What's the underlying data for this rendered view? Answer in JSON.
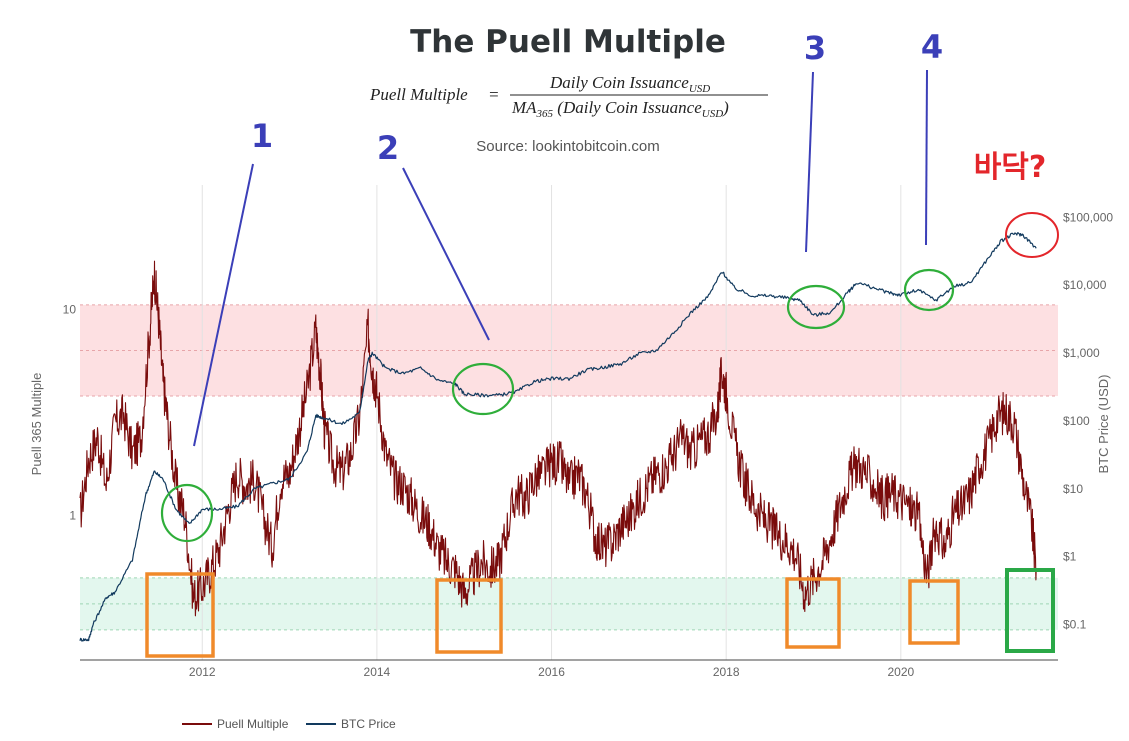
{
  "chart_data": {
    "type": "line",
    "title": "The Puell Multiple",
    "formula": {
      "lhs": "Puell Multiple",
      "equals": "=",
      "numerator": "Daily Coin Issuance",
      "numerator_sub": "USD",
      "denominator_ma": "MA",
      "denominator_ma_sub": "365",
      "denominator_text": " (Daily Coin Issuance",
      "denominator_sub": "USD",
      "denominator_close": ")"
    },
    "source": "Source: lookintobitcoin.com",
    "xlabel": "",
    "xlim": [
      2010.6,
      2021.8
    ],
    "x_ticks": [
      "2012",
      "2014",
      "2016",
      "2018",
      "2020"
    ],
    "x_tick_values": [
      2012,
      2014,
      2016,
      2018,
      2020
    ],
    "y_left": {
      "label": "Puell 365 Multiple",
      "scale": "log",
      "range": [
        0.2,
        40
      ],
      "ticks": [
        "1",
        "10"
      ],
      "tick_values": [
        1,
        10
      ]
    },
    "y_right": {
      "label": "BTC Price (USD)",
      "scale": "log",
      "range": [
        0.03,
        300000
      ],
      "ticks": [
        "$0.1",
        "$1",
        "$10",
        "$100",
        "$1,000",
        "$10,000",
        "$100,000"
      ],
      "tick_values": [
        0.1,
        1,
        10,
        100,
        1000,
        10000,
        100000
      ]
    },
    "bands": [
      {
        "name": "overvalued-zone",
        "from": 3.8,
        "to": 10.5,
        "color": "#fde0e2"
      },
      {
        "name": "undervalued-zone",
        "from": 0.28,
        "to": 0.5,
        "color": "#e3f7ee"
      }
    ],
    "series": [
      {
        "name": "Puell Multiple",
        "color": "#7a0c0c",
        "axis": "left",
        "x": [
          2010.6,
          2010.7,
          2010.8,
          2010.9,
          2011.0,
          2011.1,
          2011.2,
          2011.3,
          2011.4,
          2011.45,
          2011.5,
          2011.55,
          2011.6,
          2011.7,
          2011.8,
          2011.9,
          2012.0,
          2012.1,
          2012.2,
          2012.3,
          2012.4,
          2012.5,
          2012.6,
          2012.7,
          2012.8,
          2012.9,
          2013.0,
          2013.1,
          2013.2,
          2013.3,
          2013.35,
          2013.4,
          2013.5,
          2013.6,
          2013.7,
          2013.8,
          2013.9,
          2013.95,
          2014.0,
          2014.1,
          2014.2,
          2014.3,
          2014.4,
          2014.5,
          2014.6,
          2014.7,
          2014.8,
          2014.9,
          2015.0,
          2015.1,
          2015.2,
          2015.3,
          2015.4,
          2015.5,
          2015.6,
          2015.7,
          2015.8,
          2015.9,
          2016.0,
          2016.1,
          2016.2,
          2016.3,
          2016.4,
          2016.5,
          2016.6,
          2016.7,
          2016.8,
          2016.9,
          2017.0,
          2017.1,
          2017.2,
          2017.3,
          2017.4,
          2017.5,
          2017.6,
          2017.7,
          2017.8,
          2017.9,
          2017.95,
          2018.0,
          2018.1,
          2018.2,
          2018.3,
          2018.4,
          2018.5,
          2018.6,
          2018.7,
          2018.8,
          2018.9,
          2019.0,
          2019.1,
          2019.2,
          2019.3,
          2019.4,
          2019.5,
          2019.6,
          2019.7,
          2019.8,
          2019.9,
          2020.0,
          2020.1,
          2020.2,
          2020.3,
          2020.4,
          2020.5,
          2020.6,
          2020.7,
          2020.8,
          2020.9,
          2021.0,
          2021.1,
          2021.2,
          2021.3,
          2021.4,
          2021.5,
          2021.55
        ],
        "values": [
          1.0,
          1.9,
          2.4,
          1.4,
          2.8,
          3.1,
          2.0,
          2.4,
          8.0,
          15.0,
          9.0,
          4.5,
          3.0,
          1.4,
          1.0,
          0.4,
          0.45,
          0.55,
          0.7,
          1.1,
          1.6,
          1.4,
          1.5,
          1.0,
          0.7,
          1.5,
          1.6,
          2.5,
          4.0,
          8.0,
          5.0,
          2.6,
          1.8,
          1.6,
          2.0,
          3.0,
          8.0,
          5.0,
          4.0,
          2.0,
          1.5,
          1.4,
          1.2,
          1.0,
          0.9,
          0.7,
          0.6,
          0.55,
          0.42,
          0.5,
          0.6,
          0.55,
          0.6,
          0.9,
          1.3,
          1.2,
          1.5,
          1.6,
          1.8,
          1.8,
          1.4,
          1.6,
          1.3,
          0.8,
          0.7,
          0.75,
          0.9,
          1.0,
          1.2,
          1.4,
          1.6,
          1.7,
          2.0,
          2.4,
          2.0,
          2.3,
          2.5,
          3.2,
          5.0,
          4.0,
          2.2,
          1.5,
          1.2,
          1.0,
          0.9,
          0.8,
          0.75,
          0.65,
          0.42,
          0.5,
          0.6,
          0.8,
          1.1,
          1.5,
          1.8,
          1.6,
          1.4,
          1.2,
          1.3,
          1.2,
          1.1,
          1.0,
          0.5,
          0.9,
          0.7,
          1.0,
          1.1,
          1.3,
          1.8,
          2.2,
          3.0,
          3.2,
          2.8,
          1.5,
          0.9,
          0.55
        ]
      },
      {
        "name": "BTC Price",
        "color": "#123a5e",
        "axis": "right",
        "x": [
          2010.6,
          2010.7,
          2010.75,
          2010.9,
          2011.0,
          2011.2,
          2011.35,
          2011.45,
          2011.55,
          2011.7,
          2011.85,
          2012.0,
          2012.2,
          2012.4,
          2012.6,
          2012.8,
          2013.0,
          2013.2,
          2013.3,
          2013.4,
          2013.6,
          2013.8,
          2013.9,
          2013.95,
          2014.1,
          2014.3,
          2014.5,
          2014.7,
          2014.9,
          2015.0,
          2015.2,
          2015.4,
          2015.6,
          2015.8,
          2016.0,
          2016.2,
          2016.4,
          2016.6,
          2016.8,
          2017.0,
          2017.2,
          2017.4,
          2017.6,
          2017.8,
          2017.95,
          2018.1,
          2018.3,
          2018.5,
          2018.7,
          2018.85,
          2019.0,
          2019.2,
          2019.4,
          2019.5,
          2019.7,
          2019.9,
          2020.0,
          2020.2,
          2020.4,
          2020.6,
          2020.8,
          2021.0,
          2021.15,
          2021.3,
          2021.4,
          2021.55
        ],
        "values": [
          0.06,
          0.06,
          0.1,
          0.25,
          0.3,
          0.9,
          8.0,
          18.0,
          14.0,
          5.0,
          3.0,
          5.0,
          5.0,
          5.5,
          10.0,
          12.0,
          14.0,
          35.0,
          120.0,
          110.0,
          90.0,
          130.0,
          800.0,
          1000.0,
          600.0,
          500.0,
          600.0,
          400.0,
          350.0,
          250.0,
          240.0,
          240.0,
          270.0,
          380.0,
          420.0,
          420.0,
          560.0,
          620.0,
          700.0,
          980.0,
          1100.0,
          2000.0,
          4000.0,
          7000.0,
          16000.0,
          9000.0,
          7000.0,
          7000.0,
          6500.0,
          6000.0,
          3600.0,
          4000.0,
          8000.0,
          11000.0,
          9000.0,
          7500.0,
          7200.0,
          8500.0,
          6000.0,
          9500.0,
          11000.0,
          25000.0,
          45000.0,
          58000.0,
          55000.0,
          35000.0
        ]
      }
    ],
    "annotations": [
      "1",
      "2",
      "3",
      "4",
      "바닥?"
    ]
  },
  "legend": {
    "puell": "Puell Multiple",
    "btc": "BTC Price"
  }
}
